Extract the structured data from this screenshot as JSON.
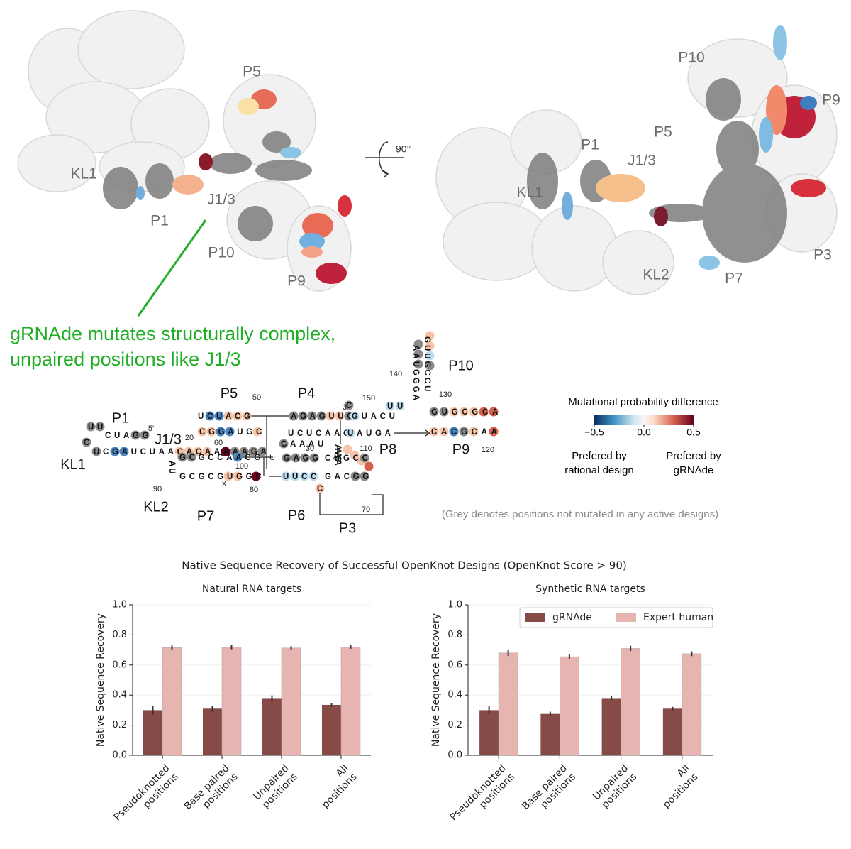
{
  "structures": {
    "left_labels": [
      "P5",
      "KL1",
      "P1",
      "J1/3",
      "P10",
      "P9"
    ],
    "rotation": "90°",
    "right_labels": [
      "P10",
      "P9",
      "P5",
      "P1",
      "J1/3",
      "KL1",
      "KL2",
      "P7",
      "P3"
    ]
  },
  "annotation": [
    "gRNAde mutates structurally complex,",
    "unpaired positions like J1/3"
  ],
  "secondary_structure": {
    "helix_labels": [
      "P1",
      "J1/3",
      "KL1",
      "P5",
      "P4",
      "P10",
      "P8",
      "P9",
      "KL2",
      "P7",
      "P6",
      "P3"
    ],
    "position_labels": [
      "50",
      "60",
      "20",
      "30",
      "40",
      "100",
      "90",
      "80",
      "70",
      "110",
      "120",
      "130",
      "140",
      "150",
      "X",
      "U",
      "5′",
      "3′"
    ],
    "sequence_rows": [
      "UU",
      "C",
      "CUAGG",
      "UCGAUCUAACACAAAAAGA",
      "UCUACG",
      "CGGAUGC",
      "AGAGUUG",
      "C",
      "UCUCAAC",
      "GUACU",
      "UAUGA",
      "AAUGGGA",
      "GUUGCCU",
      "UU",
      "GUGCGCA",
      "CACGCAA",
      "AAACA",
      "GCGCCAACG",
      "GCGCGUGGC",
      "CAAAU",
      "GAGG",
      "CUGCC",
      "UUCC",
      "GACGG",
      "AU",
      "C"
    ],
    "colorbar": {
      "title": "Mutational probability difference",
      "range": [
        -0.5,
        0.5
      ],
      "ticks": [
        {
          "value": -0.5,
          "label": "−0.5"
        },
        {
          "value": 0,
          "label": "0.0"
        },
        0.5
      ],
      "low_label": "Prefered by rational design",
      "high_label": "Prefered by gRNAde"
    },
    "grey_note": "(Grey denotes positions not mutated in any active designs)"
  },
  "charts_title": "Native Sequence Recovery of Successful OpenKnot Designs (OpenKnot Score > 90)",
  "chart_data": [
    {
      "type": "bar",
      "title": "Natural RNA targets",
      "y_label": "Native Sequence Recovery",
      "categories": [
        "Pseudoknotted positions",
        "Base paired positions",
        "Unpaired positions",
        "All positions"
      ],
      "series": [
        {
          "color": "#864a47",
          "values": [
            0.3,
            0.31,
            0.38,
            0.335
          ],
          "errors": [
            0.03,
            0.02,
            0.018,
            0.012
          ]
        },
        {
          "color": "#e6b4b1",
          "values": [
            0.715,
            0.72,
            0.713,
            0.72
          ],
          "errors": [
            0.015,
            0.015,
            0.013,
            0.012
          ]
        }
      ],
      "ylim": [
        0,
        1
      ],
      "yticks": [
        {
          "value": 0,
          "label": "0.0"
        },
        {
          "value": 0.2,
          "label": "0.2"
        },
        {
          "value": 0.4,
          "label": "0.4"
        },
        {
          "value": 0.6,
          "label": "0.6"
        },
        {
          "value": 0.8,
          "label": "0.8"
        },
        {
          "value": 1,
          "label": "1.0"
        }
      ],
      "grid": true
    },
    {
      "type": "bar",
      "title": "Synthetic RNA targets",
      "y_label": "Native Sequence Recovery",
      "categories": [
        "Pseudoknotted positions",
        "Base paired positions",
        "Unpaired positions",
        "All positions"
      ],
      "series": [
        {
          "name": "gRNAde",
          "color": "#864a47",
          "values": [
            0.3,
            0.275,
            0.38,
            0.31
          ],
          "errors": [
            0.025,
            0.015,
            0.015,
            0.012
          ]
        },
        {
          "name": "Expert human",
          "color": "#e6b4b1",
          "values": [
            0.68,
            0.655,
            0.71,
            0.675
          ],
          "errors": [
            0.02,
            0.018,
            0.018,
            0.016
          ]
        }
      ],
      "ylim": [
        0,
        1
      ],
      "yticks": [
        {
          "value": 0,
          "label": "0.0"
        },
        {
          "value": 0.2,
          "label": "0.2"
        },
        {
          "value": 0.4,
          "label": "0.4"
        },
        {
          "value": 0.6,
          "label": "0.6"
        },
        {
          "value": 0.8,
          "label": "0.8"
        },
        {
          "value": 1,
          "label": "1.0"
        }
      ],
      "grid": true,
      "legend": "upper right"
    }
  ]
}
